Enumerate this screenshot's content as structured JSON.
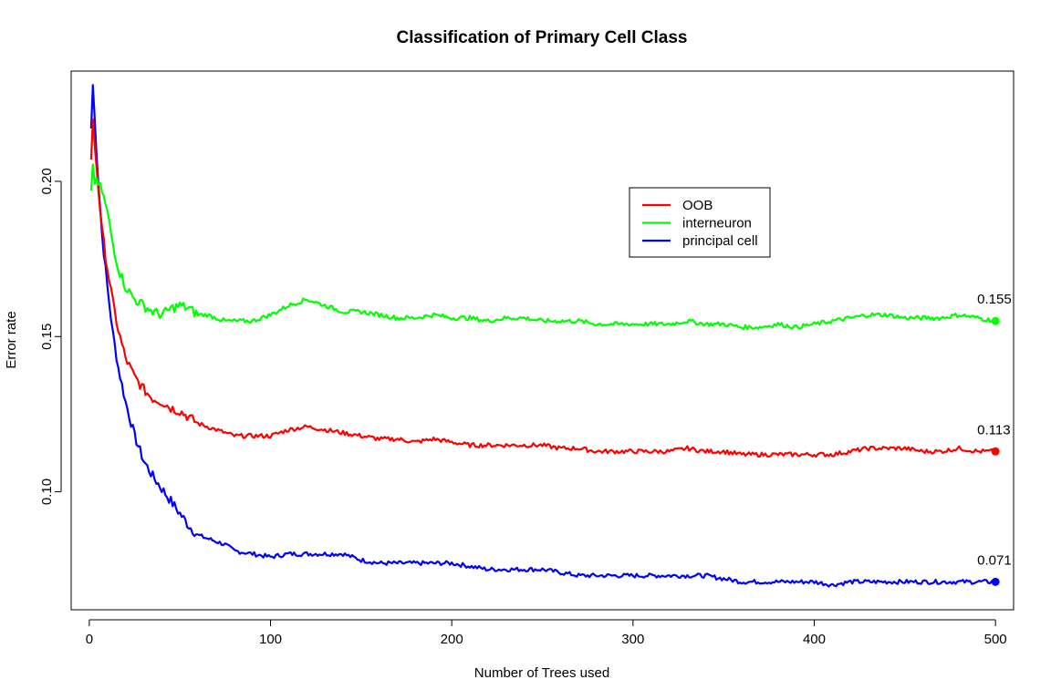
{
  "chart_data": {
    "type": "line",
    "title": "Classification of Primary Cell Class",
    "xlabel": "Number of Trees used",
    "ylabel": "Error rate",
    "xlim": [
      -10,
      510
    ],
    "ylim": [
      0.062,
      0.2355
    ],
    "xticks": [
      0,
      100,
      200,
      300,
      400,
      500
    ],
    "yticks": [
      0.1,
      0.15,
      0.2
    ],
    "ytick_labels": [
      "0.10",
      "0.15",
      "0.20"
    ],
    "grid": false,
    "legend_position": "top-right",
    "series": [
      {
        "name": "OOB",
        "color": "#ff0000",
        "points": [
          [
            1,
            0.207
          ],
          [
            2,
            0.219
          ],
          [
            3,
            0.212
          ],
          [
            5,
            0.198
          ],
          [
            7,
            0.184
          ],
          [
            10,
            0.172
          ],
          [
            13,
            0.161
          ],
          [
            16,
            0.152
          ],
          [
            20,
            0.143
          ],
          [
            25,
            0.137
          ],
          [
            30,
            0.133
          ],
          [
            35,
            0.13
          ],
          [
            40,
            0.129
          ],
          [
            45,
            0.127
          ],
          [
            50,
            0.126
          ],
          [
            55,
            0.124
          ],
          [
            60,
            0.122
          ],
          [
            65,
            0.121
          ],
          [
            70,
            0.12
          ],
          [
            75,
            0.119
          ],
          [
            80,
            0.118
          ],
          [
            90,
            0.118
          ],
          [
            100,
            0.118
          ],
          [
            110,
            0.12
          ],
          [
            120,
            0.121
          ],
          [
            130,
            0.12
          ],
          [
            140,
            0.119
          ],
          [
            150,
            0.118
          ],
          [
            160,
            0.117
          ],
          [
            170,
            0.117
          ],
          [
            180,
            0.116
          ],
          [
            190,
            0.117
          ],
          [
            200,
            0.116
          ],
          [
            210,
            0.115
          ],
          [
            220,
            0.115
          ],
          [
            230,
            0.115
          ],
          [
            240,
            0.115
          ],
          [
            250,
            0.115
          ],
          [
            260,
            0.114
          ],
          [
            270,
            0.114
          ],
          [
            280,
            0.113
          ],
          [
            290,
            0.113
          ],
          [
            300,
            0.113
          ],
          [
            310,
            0.113
          ],
          [
            320,
            0.113
          ],
          [
            330,
            0.114
          ],
          [
            340,
            0.113
          ],
          [
            350,
            0.113
          ],
          [
            360,
            0.112
          ],
          [
            370,
            0.112
          ],
          [
            380,
            0.112
          ],
          [
            390,
            0.112
          ],
          [
            400,
            0.112
          ],
          [
            410,
            0.112
          ],
          [
            420,
            0.113
          ],
          [
            430,
            0.114
          ],
          [
            440,
            0.114
          ],
          [
            450,
            0.114
          ],
          [
            460,
            0.113
          ],
          [
            470,
            0.113
          ],
          [
            480,
            0.114
          ],
          [
            490,
            0.113
          ],
          [
            500,
            0.113
          ]
        ]
      },
      {
        "name": "interneuron",
        "color": "#00ff00",
        "points": [
          [
            1,
            0.197
          ],
          [
            2,
            0.205
          ],
          [
            3,
            0.2
          ],
          [
            5,
            0.199
          ],
          [
            7,
            0.197
          ],
          [
            10,
            0.19
          ],
          [
            13,
            0.18
          ],
          [
            16,
            0.172
          ],
          [
            20,
            0.166
          ],
          [
            25,
            0.162
          ],
          [
            30,
            0.16
          ],
          [
            35,
            0.158
          ],
          [
            40,
            0.157
          ],
          [
            45,
            0.159
          ],
          [
            50,
            0.16
          ],
          [
            55,
            0.159
          ],
          [
            60,
            0.157
          ],
          [
            65,
            0.157
          ],
          [
            70,
            0.156
          ],
          [
            75,
            0.155
          ],
          [
            80,
            0.155
          ],
          [
            90,
            0.155
          ],
          [
            100,
            0.157
          ],
          [
            110,
            0.16
          ],
          [
            120,
            0.162
          ],
          [
            130,
            0.16
          ],
          [
            140,
            0.158
          ],
          [
            150,
            0.158
          ],
          [
            160,
            0.157
          ],
          [
            170,
            0.156
          ],
          [
            180,
            0.156
          ],
          [
            190,
            0.157
          ],
          [
            200,
            0.156
          ],
          [
            210,
            0.156
          ],
          [
            220,
            0.155
          ],
          [
            230,
            0.156
          ],
          [
            240,
            0.156
          ],
          [
            250,
            0.155
          ],
          [
            260,
            0.155
          ],
          [
            270,
            0.155
          ],
          [
            280,
            0.154
          ],
          [
            290,
            0.154
          ],
          [
            300,
            0.154
          ],
          [
            310,
            0.154
          ],
          [
            320,
            0.154
          ],
          [
            330,
            0.155
          ],
          [
            340,
            0.154
          ],
          [
            350,
            0.154
          ],
          [
            360,
            0.153
          ],
          [
            370,
            0.153
          ],
          [
            380,
            0.154
          ],
          [
            390,
            0.153
          ],
          [
            400,
            0.154
          ],
          [
            410,
            0.155
          ],
          [
            420,
            0.156
          ],
          [
            430,
            0.157
          ],
          [
            440,
            0.157
          ],
          [
            450,
            0.156
          ],
          [
            460,
            0.156
          ],
          [
            470,
            0.156
          ],
          [
            480,
            0.157
          ],
          [
            490,
            0.156
          ],
          [
            500,
            0.155
          ]
        ]
      },
      {
        "name": "principal cell",
        "color": "#0000ff",
        "points": [
          [
            1,
            0.217
          ],
          [
            2,
            0.231
          ],
          [
            3,
            0.22
          ],
          [
            5,
            0.2
          ],
          [
            7,
            0.183
          ],
          [
            10,
            0.166
          ],
          [
            13,
            0.151
          ],
          [
            16,
            0.14
          ],
          [
            20,
            0.129
          ],
          [
            25,
            0.118
          ],
          [
            30,
            0.11
          ],
          [
            35,
            0.105
          ],
          [
            40,
            0.101
          ],
          [
            45,
            0.097
          ],
          [
            50,
            0.093
          ],
          [
            55,
            0.089
          ],
          [
            60,
            0.086
          ],
          [
            65,
            0.085
          ],
          [
            70,
            0.084
          ],
          [
            75,
            0.083
          ],
          [
            80,
            0.081
          ],
          [
            90,
            0.08
          ],
          [
            100,
            0.079
          ],
          [
            110,
            0.08
          ],
          [
            120,
            0.08
          ],
          [
            130,
            0.08
          ],
          [
            140,
            0.08
          ],
          [
            150,
            0.078
          ],
          [
            160,
            0.077
          ],
          [
            170,
            0.077
          ],
          [
            180,
            0.077
          ],
          [
            190,
            0.077
          ],
          [
            200,
            0.077
          ],
          [
            210,
            0.076
          ],
          [
            220,
            0.075
          ],
          [
            230,
            0.075
          ],
          [
            240,
            0.075
          ],
          [
            250,
            0.075
          ],
          [
            260,
            0.074
          ],
          [
            270,
            0.073
          ],
          [
            280,
            0.073
          ],
          [
            290,
            0.073
          ],
          [
            300,
            0.073
          ],
          [
            310,
            0.073
          ],
          [
            320,
            0.073
          ],
          [
            330,
            0.073
          ],
          [
            340,
            0.073
          ],
          [
            350,
            0.072
          ],
          [
            360,
            0.071
          ],
          [
            370,
            0.071
          ],
          [
            380,
            0.071
          ],
          [
            390,
            0.071
          ],
          [
            400,
            0.071
          ],
          [
            410,
            0.07
          ],
          [
            420,
            0.071
          ],
          [
            430,
            0.071
          ],
          [
            440,
            0.071
          ],
          [
            450,
            0.071
          ],
          [
            460,
            0.071
          ],
          [
            470,
            0.071
          ],
          [
            480,
            0.071
          ],
          [
            490,
            0.071
          ],
          [
            500,
            0.071
          ]
        ]
      }
    ],
    "end_labels": [
      {
        "text": "0.155",
        "x": 500,
        "y": 0.155,
        "color": "#00ff00"
      },
      {
        "text": "0.113",
        "x": 500,
        "y": 0.113,
        "color": "#ff0000"
      },
      {
        "text": "0.071",
        "x": 500,
        "y": 0.071,
        "color": "#0000ff"
      }
    ]
  }
}
